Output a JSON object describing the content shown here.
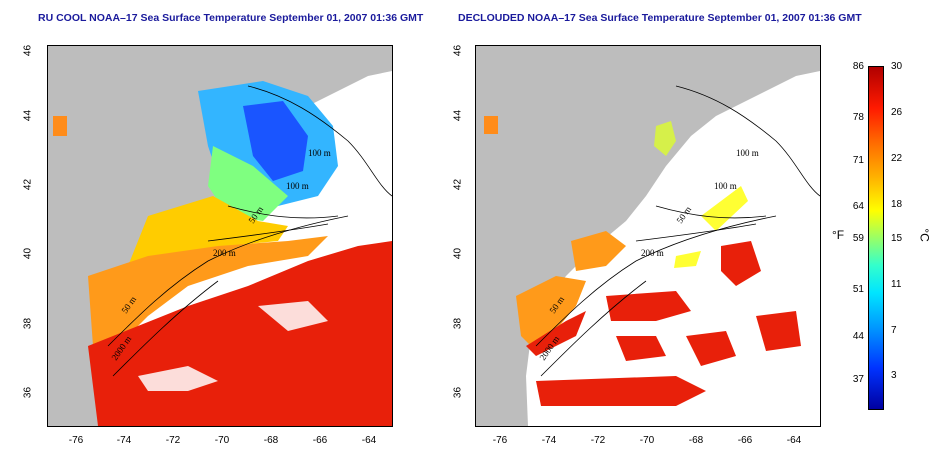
{
  "left_panel": {
    "title": "RU COOL NOAA–17 Sea Surface Temperature September 01, 2007 01:36 GMT",
    "contours": [
      "100 m",
      "100 m",
      "50 m",
      "200 m",
      "50 m",
      "2000 m"
    ]
  },
  "right_panel": {
    "title": "DECLOUDED NOAA–17 Sea Surface Temperature September 01, 2007 01:36 GMT",
    "contours": [
      "100 m",
      "100 m",
      "50 m",
      "200 m",
      "50 m",
      "2000 m"
    ]
  },
  "x_ticks": [
    "-76",
    "-74",
    "-72",
    "-70",
    "-68",
    "-66",
    "-64"
  ],
  "y_ticks": [
    "46",
    "44",
    "42",
    "40",
    "38",
    "36"
  ],
  "colorbar": {
    "fahrenheit_ticks": [
      "86",
      "78",
      "71",
      "64",
      "59",
      "51",
      "44",
      "37"
    ],
    "celsius_ticks": [
      "30",
      "26",
      "22",
      "18",
      "15",
      "11",
      "7",
      "3"
    ],
    "unit_f": "°F",
    "unit_c": "°C",
    "range_c": [
      0,
      30
    ],
    "colors": [
      "#0000a0",
      "#0033ff",
      "#0099ff",
      "#00e5ff",
      "#33ffcc",
      "#99ff66",
      "#ffff00",
      "#ffb000",
      "#ff6a00",
      "#ff1a00",
      "#b00000"
    ]
  }
}
